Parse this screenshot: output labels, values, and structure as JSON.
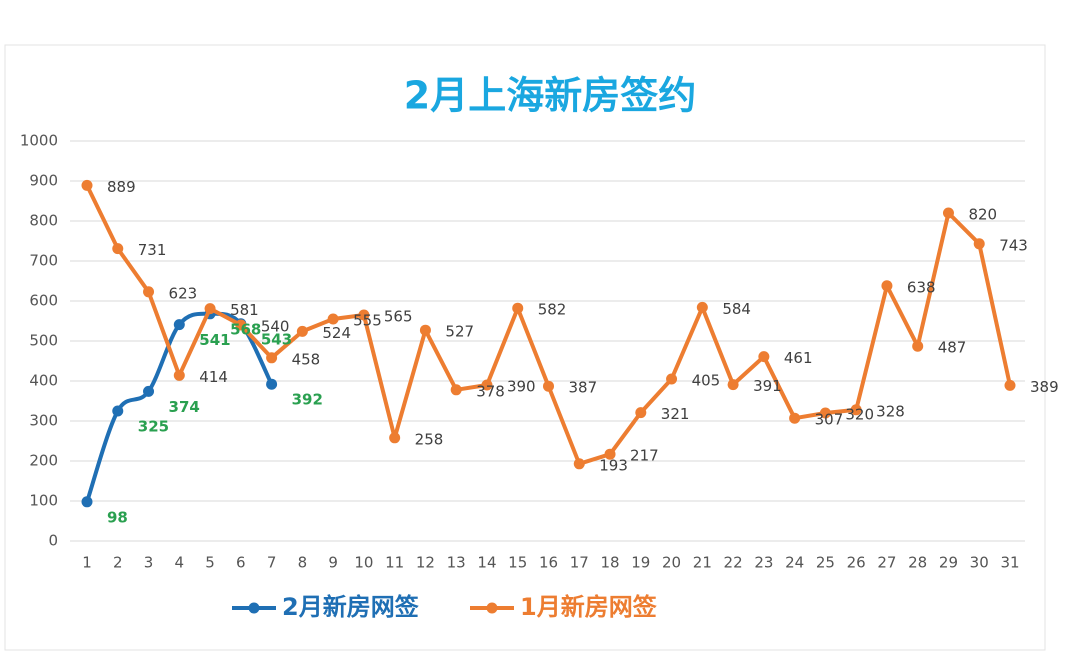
{
  "chart_data": {
    "type": "line",
    "title": "2月上海新房签约",
    "x": [
      1,
      2,
      3,
      4,
      5,
      6,
      7,
      8,
      9,
      10,
      11,
      12,
      13,
      14,
      15,
      16,
      17,
      18,
      19,
      20,
      21,
      22,
      23,
      24,
      25,
      26,
      27,
      28,
      29,
      30,
      31
    ],
    "xlim": [
      1,
      31
    ],
    "xticks": [
      1,
      2,
      3,
      4,
      5,
      6,
      7,
      8,
      9,
      10,
      11,
      12,
      13,
      14,
      15,
      16,
      17,
      18,
      19,
      20,
      21,
      22,
      23,
      24,
      25,
      26,
      27,
      28,
      29,
      30,
      31
    ],
    "ylim": [
      0,
      1000
    ],
    "yticks": [
      0,
      100,
      200,
      300,
      400,
      500,
      600,
      700,
      800,
      900,
      1000
    ],
    "grid": true,
    "legend": "bottom",
    "series": [
      {
        "name": "2月新房网签",
        "color": "#1f6fb4",
        "label_color": "#2aa050",
        "smooth": true,
        "values": [
          98,
          325,
          374,
          541,
          568,
          543,
          392,
          null,
          null,
          null,
          null,
          null,
          null,
          null,
          null,
          null,
          null,
          null,
          null,
          null,
          null,
          null,
          null,
          null,
          null,
          null,
          null,
          null,
          null,
          null,
          null
        ]
      },
      {
        "name": "1月新房网签",
        "color": "#ed7d31",
        "label_color": "#404040",
        "smooth": false,
        "values": [
          889,
          731,
          623,
          414,
          581,
          540,
          458,
          524,
          555,
          565,
          258,
          527,
          378,
          390,
          582,
          387,
          193,
          217,
          321,
          405,
          584,
          391,
          461,
          307,
          320,
          328,
          638,
          487,
          820,
          743,
          389
        ]
      }
    ]
  }
}
